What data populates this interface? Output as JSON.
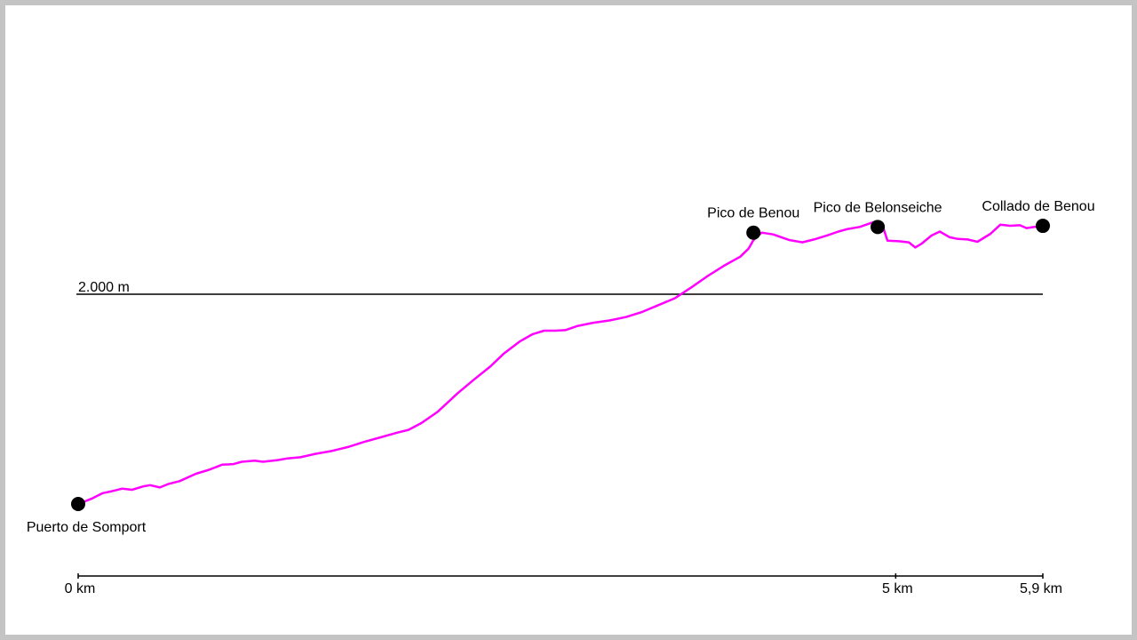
{
  "chart_data": {
    "type": "line",
    "title": "",
    "xlabel": "",
    "ylabel": "",
    "x_unit": "km",
    "y_unit": "m",
    "xlim": [
      0,
      5.9
    ],
    "x_ticks": [
      {
        "value": 0,
        "label": "0 km"
      },
      {
        "value": 5,
        "label": "5 km"
      },
      {
        "value": 5.9,
        "label": "5,9 km"
      }
    ],
    "reference_lines": [
      {
        "value": 2000,
        "label": "2.000 m"
      }
    ],
    "series": [
      {
        "color": "#ff00ff",
        "points": [
          [
            0.0,
            1632
          ],
          [
            0.08,
            1641
          ],
          [
            0.15,
            1651
          ],
          [
            0.2,
            1654
          ],
          [
            0.27,
            1659
          ],
          [
            0.33,
            1657
          ],
          [
            0.4,
            1663
          ],
          [
            0.44,
            1665
          ],
          [
            0.5,
            1661
          ],
          [
            0.55,
            1667
          ],
          [
            0.62,
            1672
          ],
          [
            0.72,
            1685
          ],
          [
            0.8,
            1692
          ],
          [
            0.88,
            1701
          ],
          [
            0.95,
            1702
          ],
          [
            1.0,
            1706
          ],
          [
            1.08,
            1708
          ],
          [
            1.13,
            1706
          ],
          [
            1.22,
            1709
          ],
          [
            1.28,
            1712
          ],
          [
            1.36,
            1714
          ],
          [
            1.45,
            1720
          ],
          [
            1.55,
            1725
          ],
          [
            1.65,
            1732
          ],
          [
            1.75,
            1741
          ],
          [
            1.85,
            1749
          ],
          [
            1.95,
            1757
          ],
          [
            2.02,
            1762
          ],
          [
            2.1,
            1774
          ],
          [
            2.2,
            1794
          ],
          [
            2.32,
            1826
          ],
          [
            2.42,
            1850
          ],
          [
            2.52,
            1873
          ],
          [
            2.6,
            1895
          ],
          [
            2.7,
            1917
          ],
          [
            2.78,
            1930
          ],
          [
            2.85,
            1936
          ],
          [
            2.92,
            1936
          ],
          [
            2.98,
            1937
          ],
          [
            3.05,
            1944
          ],
          [
            3.15,
            1950
          ],
          [
            3.25,
            1954
          ],
          [
            3.35,
            1960
          ],
          [
            3.45,
            1969
          ],
          [
            3.55,
            1981
          ],
          [
            3.65,
            1993
          ],
          [
            3.75,
            2012
          ],
          [
            3.85,
            2032
          ],
          [
            3.95,
            2050
          ],
          [
            4.05,
            2066
          ],
          [
            4.1,
            2080
          ],
          [
            4.13,
            2095
          ],
          [
            4.18,
            2108
          ],
          [
            4.25,
            2105
          ],
          [
            4.35,
            2095
          ],
          [
            4.43,
            2091
          ],
          [
            4.5,
            2096
          ],
          [
            4.58,
            2103
          ],
          [
            4.65,
            2110
          ],
          [
            4.7,
            2114
          ],
          [
            4.78,
            2118
          ],
          [
            4.85,
            2125
          ],
          [
            4.88,
            2128
          ],
          [
            4.92,
            2120
          ],
          [
            4.95,
            2094
          ],
          [
            5.02,
            2093
          ],
          [
            5.08,
            2091
          ],
          [
            5.12,
            2082
          ],
          [
            5.16,
            2089
          ],
          [
            5.22,
            2103
          ],
          [
            5.27,
            2110
          ],
          [
            5.33,
            2100
          ],
          [
            5.38,
            2097
          ],
          [
            5.44,
            2096
          ],
          [
            5.5,
            2092
          ],
          [
            5.58,
            2106
          ],
          [
            5.64,
            2122
          ],
          [
            5.7,
            2120
          ],
          [
            5.76,
            2121
          ],
          [
            5.8,
            2116
          ],
          [
            5.85,
            2118
          ],
          [
            5.9,
            2120
          ]
        ]
      }
    ],
    "markers": [
      {
        "x": 0.0,
        "y": 1632,
        "label": "Puerto de Somport",
        "label_pos": "below-left"
      },
      {
        "x": 4.13,
        "y": 2108,
        "label": "Pico de Benou",
        "label_pos": "above"
      },
      {
        "x": 4.89,
        "y": 2118,
        "label": "Pico de Belonseiche",
        "label_pos": "above"
      },
      {
        "x": 5.9,
        "y": 2120,
        "label": "Collado de Benou",
        "label_pos": "above"
      }
    ]
  }
}
